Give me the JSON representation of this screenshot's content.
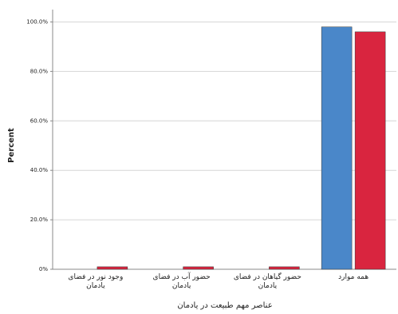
{
  "chart_data": {
    "type": "bar",
    "x_label": "عناصر مهم طبیعت در یادمان",
    "y_label": "Percent",
    "categories": [
      "وجود نور در فضای یادمان",
      "حضور آب در فضای یادمان",
      "حضور گیاهان در فضای یادمان",
      "همه موارد"
    ],
    "series": [
      {
        "color": "#4a87c9",
        "values": [
          0,
          0,
          0,
          98
        ]
      },
      {
        "color": "#d9253f",
        "values": [
          1,
          1,
          1,
          96
        ]
      }
    ],
    "ylim": [
      0,
      105
    ],
    "yticks": [
      {
        "value": 0,
        "label": "0%"
      },
      {
        "value": 20,
        "label": "20.0%"
      },
      {
        "value": 40,
        "label": "40.0%"
      },
      {
        "value": 60,
        "label": "60.0%"
      },
      {
        "value": 80,
        "label": "80.0%"
      },
      {
        "value": 100,
        "label": "100.0%"
      }
    ],
    "grid": true
  }
}
